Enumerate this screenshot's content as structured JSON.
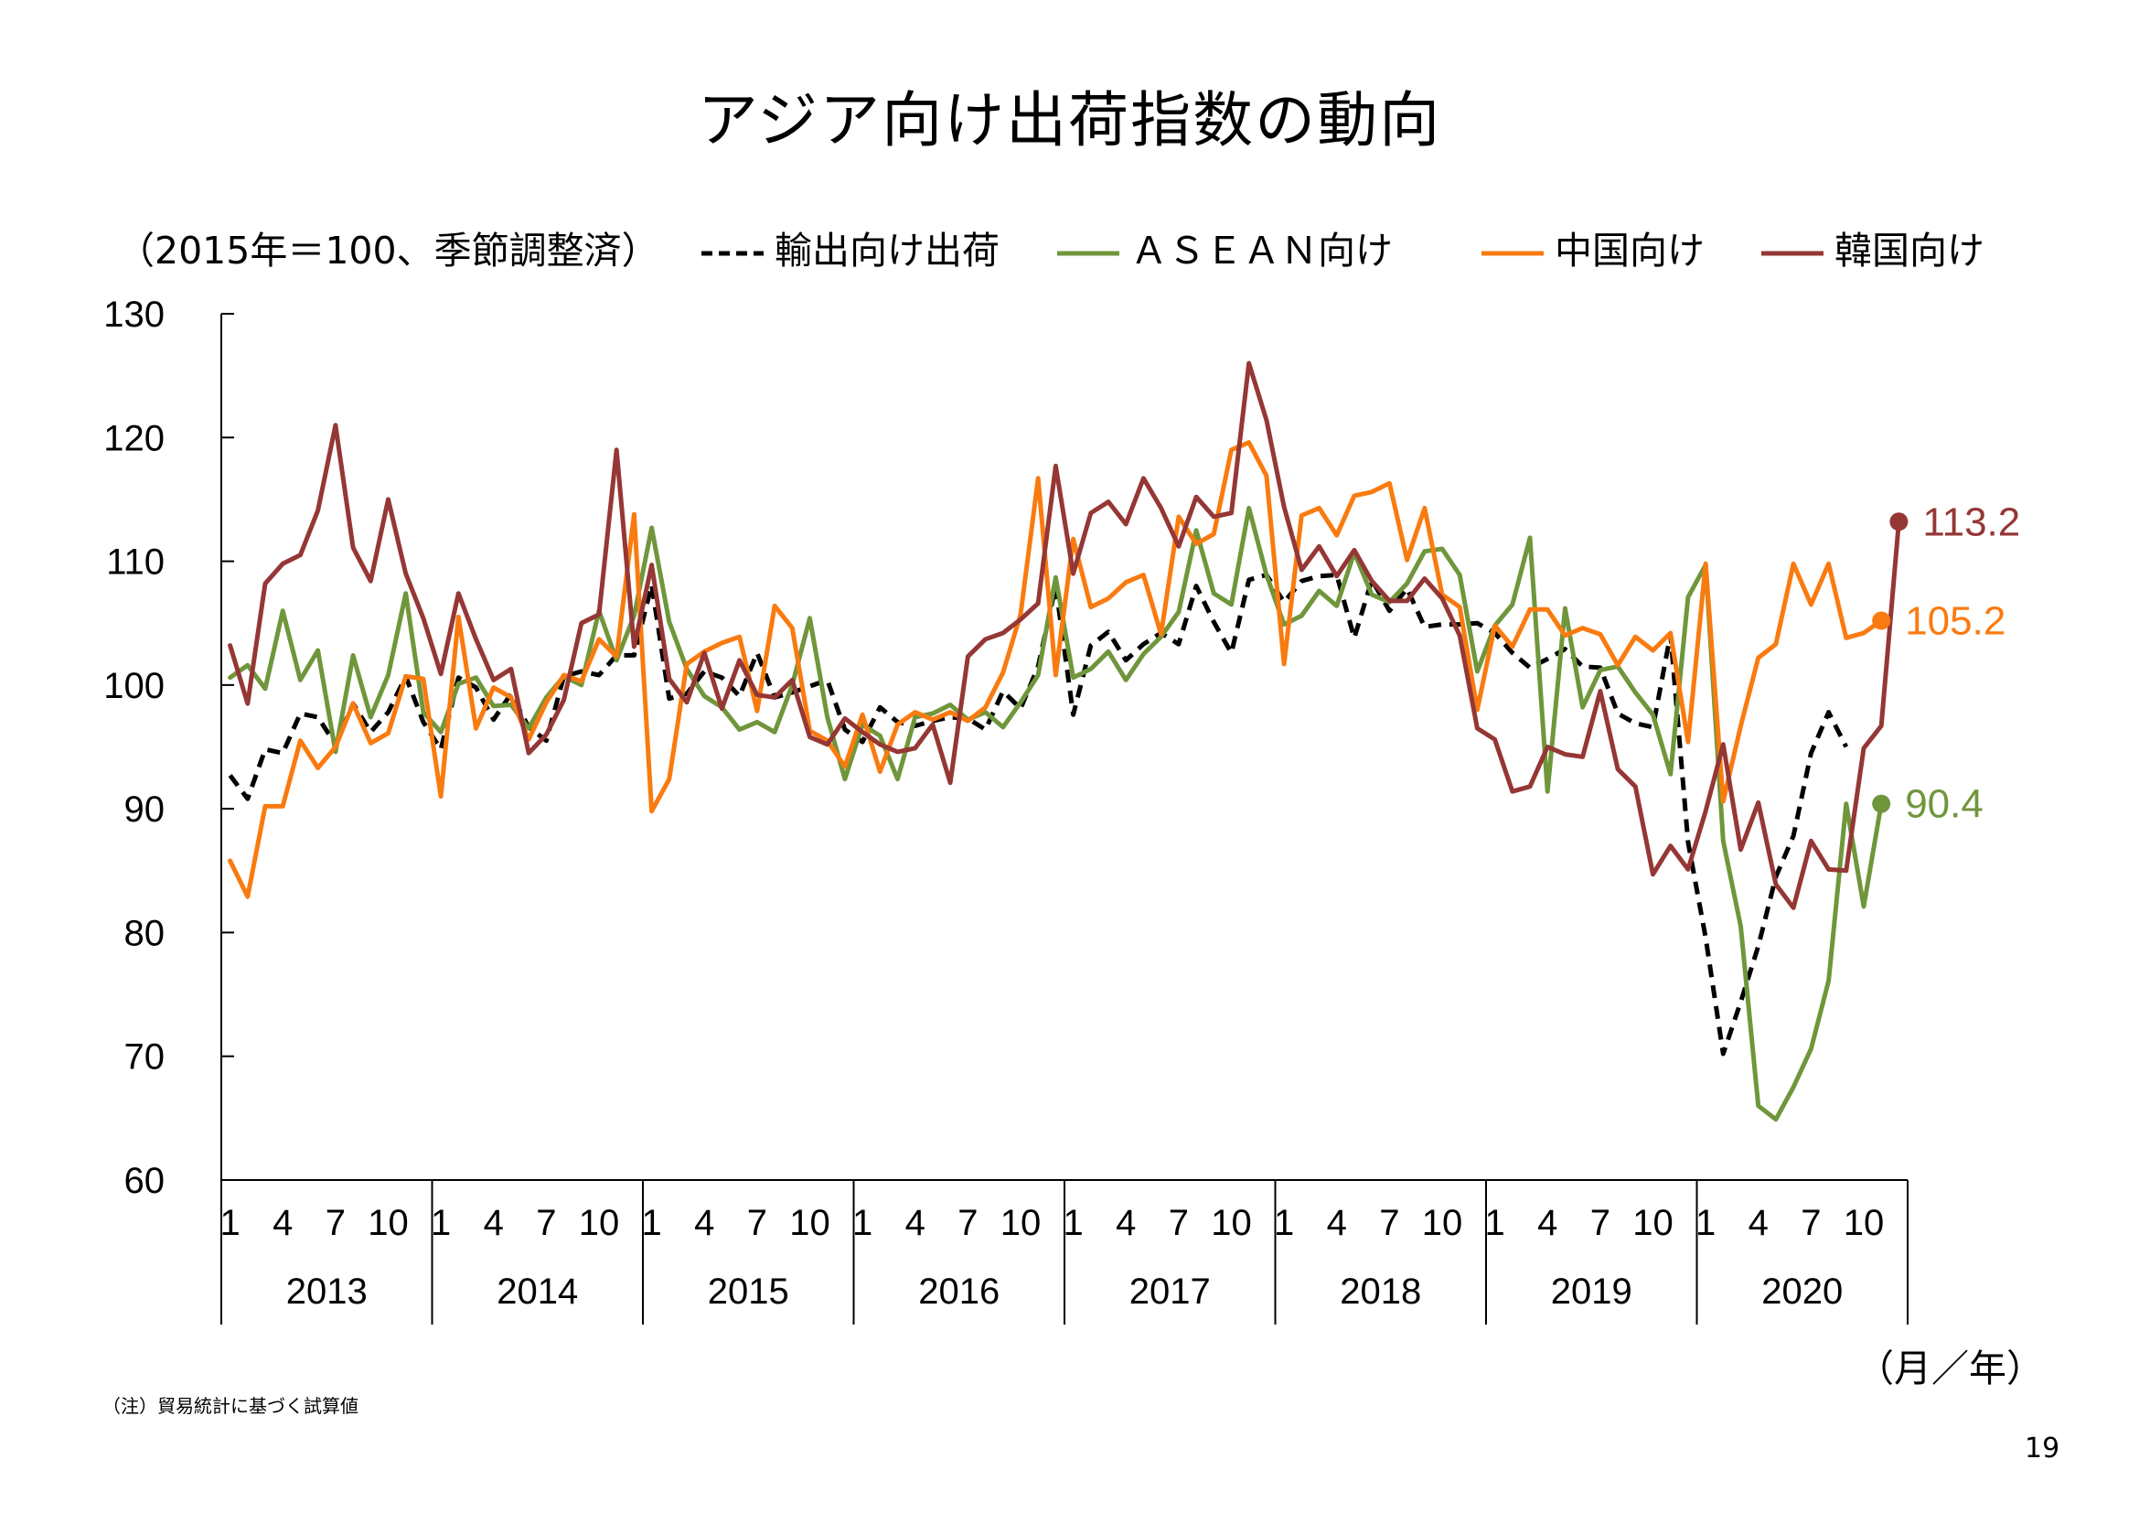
{
  "title": "アジア向け出荷指数の動向",
  "unit_label": "（2015年＝100、季節調整済）",
  "x_unit_label": "（月／年）",
  "note": "（注）貿易統計に基づく試算値",
  "page_number": "19",
  "colors": {
    "exports": "#000000",
    "asean": "#70963c",
    "china": "#f97b10",
    "korea": "#953735"
  },
  "chart_data": {
    "type": "line",
    "ylim": [
      60,
      130
    ],
    "yticks": [
      "60",
      "70",
      "80",
      "90",
      "100",
      "110",
      "120",
      "130"
    ],
    "month_ticks": [
      "1",
      "4",
      "7",
      "10"
    ],
    "years": [
      "2013",
      "2014",
      "2015",
      "2016",
      "2017",
      "2018",
      "2019",
      "2020"
    ],
    "grid": false,
    "legend_position": "top",
    "end_labels": {
      "korea": "113.2",
      "china": "105.2",
      "asean": "90.4"
    },
    "series": [
      {
        "key": "exports",
        "name": "輸出向け出荷",
        "style": "dashed",
        "values": [
          92.7,
          90.8,
          94.8,
          94.5,
          97.7,
          97.4,
          95.2,
          98.5,
          96.2,
          97.8,
          100.7,
          97.0,
          94.8,
          100.6,
          99.8,
          97.2,
          99.3,
          96.6,
          95.5,
          100.7,
          101.1,
          100.8,
          102.4,
          102.4,
          108.1,
          98.9,
          99.3,
          101.1,
          100.6,
          99.1,
          102.6,
          99.0,
          99.4,
          99.9,
          100.4,
          96.4,
          95.4,
          98.2,
          97.0,
          96.7,
          97.1,
          97.4,
          97.3,
          96.4,
          99.5,
          98.1,
          101.5,
          108.0,
          97.6,
          103.2,
          104.3,
          102.0,
          103.3,
          104.2,
          103.3,
          108.0,
          105.1,
          102.6,
          108.5,
          108.9,
          106.7,
          108.4,
          108.8,
          108.9,
          103.8,
          108.5,
          106.0,
          107.8,
          104.7,
          104.9,
          104.9,
          105.0,
          104.2,
          102.6,
          101.4,
          102.1,
          102.9,
          101.5,
          101.4,
          97.7,
          96.9,
          96.6,
          104.1,
          87.3,
          79.6,
          70.2,
          74.4,
          78.9,
          84.5,
          87.8,
          94.5,
          97.8,
          95.0
        ]
      },
      {
        "key": "asean",
        "name": "ＡＳＥＡＮ向け",
        "style": "solid",
        "values": [
          100.6,
          101.6,
          99.7,
          106.0,
          100.4,
          102.8,
          94.6,
          102.4,
          97.4,
          100.8,
          107.4,
          97.8,
          96.2,
          100.1,
          100.6,
          98.3,
          98.4,
          96.5,
          99.0,
          100.7,
          100.0,
          106.0,
          102.0,
          105.6,
          112.7,
          105.1,
          101.3,
          99.1,
          98.2,
          96.4,
          97.0,
          96.2,
          100.0,
          105.4,
          97.4,
          92.4,
          96.8,
          95.9,
          92.4,
          97.4,
          97.7,
          98.4,
          97.2,
          97.8,
          96.6,
          98.6,
          100.8,
          108.7,
          100.6,
          101.3,
          102.7,
          100.4,
          102.5,
          103.9,
          105.9,
          112.5,
          107.4,
          106.5,
          114.3,
          108.9,
          104.9,
          105.6,
          107.6,
          106.4,
          110.7,
          107.3,
          106.7,
          108.2,
          110.8,
          111.0,
          108.9,
          101.1,
          104.8,
          106.5,
          111.9,
          91.4,
          106.2,
          98.2,
          101.2,
          101.5,
          99.4,
          97.6,
          92.8,
          107.1,
          109.7,
          87.4,
          80.5,
          66.0,
          64.9,
          67.5,
          70.6,
          76.1,
          90.4,
          82.1,
          90.4
        ]
      },
      {
        "key": "china",
        "name": "中国向け",
        "style": "solid",
        "values": [
          85.8,
          82.9,
          90.2,
          90.2,
          95.5,
          93.3,
          95.0,
          98.5,
          95.3,
          96.1,
          100.7,
          100.5,
          91.0,
          105.5,
          96.5,
          99.8,
          99.0,
          95.6,
          98.6,
          100.8,
          100.3,
          103.7,
          102.3,
          113.8,
          89.8,
          92.4,
          101.7,
          102.7,
          103.4,
          103.9,
          97.9,
          106.4,
          104.6,
          96.3,
          95.5,
          93.4,
          97.6,
          93.0,
          96.8,
          97.8,
          97.2,
          97.8,
          97.1,
          98.2,
          101.0,
          105.7,
          116.7,
          100.8,
          111.8,
          106.3,
          107.0,
          108.3,
          108.9,
          104.1,
          113.6,
          111.4,
          112.2,
          119.0,
          119.6,
          116.9,
          101.7,
          113.7,
          114.3,
          112.1,
          115.3,
          115.6,
          116.3,
          110.1,
          114.3,
          107.3,
          106.3,
          98.0,
          104.8,
          103.1,
          106.1,
          106.1,
          104.0,
          104.6,
          104.1,
          101.6,
          103.9,
          102.8,
          104.2,
          95.4,
          109.8,
          90.6,
          96.7,
          102.2,
          103.3,
          109.8,
          106.5,
          109.8,
          103.8,
          104.2,
          105.2
        ]
      },
      {
        "key": "korea",
        "name": "韓国向け",
        "style": "solid",
        "values": [
          103.2,
          98.5,
          108.2,
          109.8,
          110.5,
          114.1,
          121.0,
          111.1,
          108.4,
          115.0,
          109.0,
          105.4,
          100.9,
          107.4,
          103.7,
          100.4,
          101.3,
          94.5,
          96.0,
          98.8,
          105.0,
          105.7,
          119.0,
          103.1,
          109.7,
          100.5,
          98.6,
          102.6,
          98.1,
          102.0,
          99.2,
          99.0,
          100.4,
          95.8,
          95.2,
          97.3,
          96.2,
          95.2,
          94.6,
          94.9,
          96.8,
          92.1,
          102.3,
          103.7,
          104.2,
          105.3,
          106.6,
          117.7,
          109.0,
          113.9,
          114.8,
          113.0,
          116.7,
          114.3,
          111.2,
          115.2,
          113.6,
          113.9,
          126.0,
          121.4,
          114.4,
          109.3,
          111.2,
          108.8,
          110.9,
          108.4,
          106.8,
          106.8,
          108.6,
          107.0,
          104.0,
          96.5,
          95.6,
          91.4,
          91.8,
          95.0,
          94.4,
          94.2,
          99.5,
          93.2,
          91.8,
          84.7,
          87.0,
          85.1,
          89.8,
          95.2,
          86.7,
          90.5,
          83.9,
          82.0,
          87.4,
          85.1,
          85.0,
          94.9,
          96.7,
          113.2
        ]
      }
    ]
  }
}
